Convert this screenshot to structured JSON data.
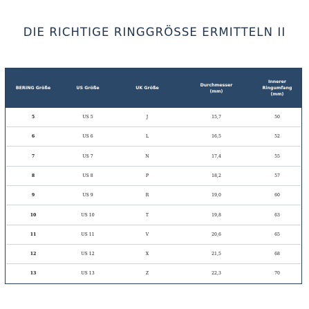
{
  "title": "DIE RICHTIGE RINGGRÖSSE ERMITTELN II",
  "table": {
    "headers": [
      "BERING Größe",
      "US Größe",
      "UK Größe",
      "Durchmesser\n(mm)",
      "Innerer\nRingumfang\n(mm)"
    ],
    "rows": [
      [
        "5",
        "US 5",
        "J",
        "15,7",
        "50"
      ],
      [
        "6",
        "US 6",
        "L",
        "16,5",
        "52"
      ],
      [
        "7",
        "US 7",
        "N",
        "17,4",
        "55"
      ],
      [
        "8",
        "US 8",
        "P",
        "18,2",
        "57"
      ],
      [
        "9",
        "US 9",
        "R",
        "19,0",
        "60"
      ],
      [
        "10",
        "US 10",
        "T",
        "19,8",
        "63"
      ],
      [
        "11",
        "US 11",
        "V",
        "20,6",
        "65"
      ],
      [
        "12",
        "US 12",
        "X",
        "21,5",
        "68"
      ],
      [
        "13",
        "US 13",
        "Z",
        "22,3",
        "70"
      ]
    ]
  },
  "colors": {
    "header_bg": "#2c4869",
    "title": "#1e3350",
    "border": "#2a3f5c"
  }
}
